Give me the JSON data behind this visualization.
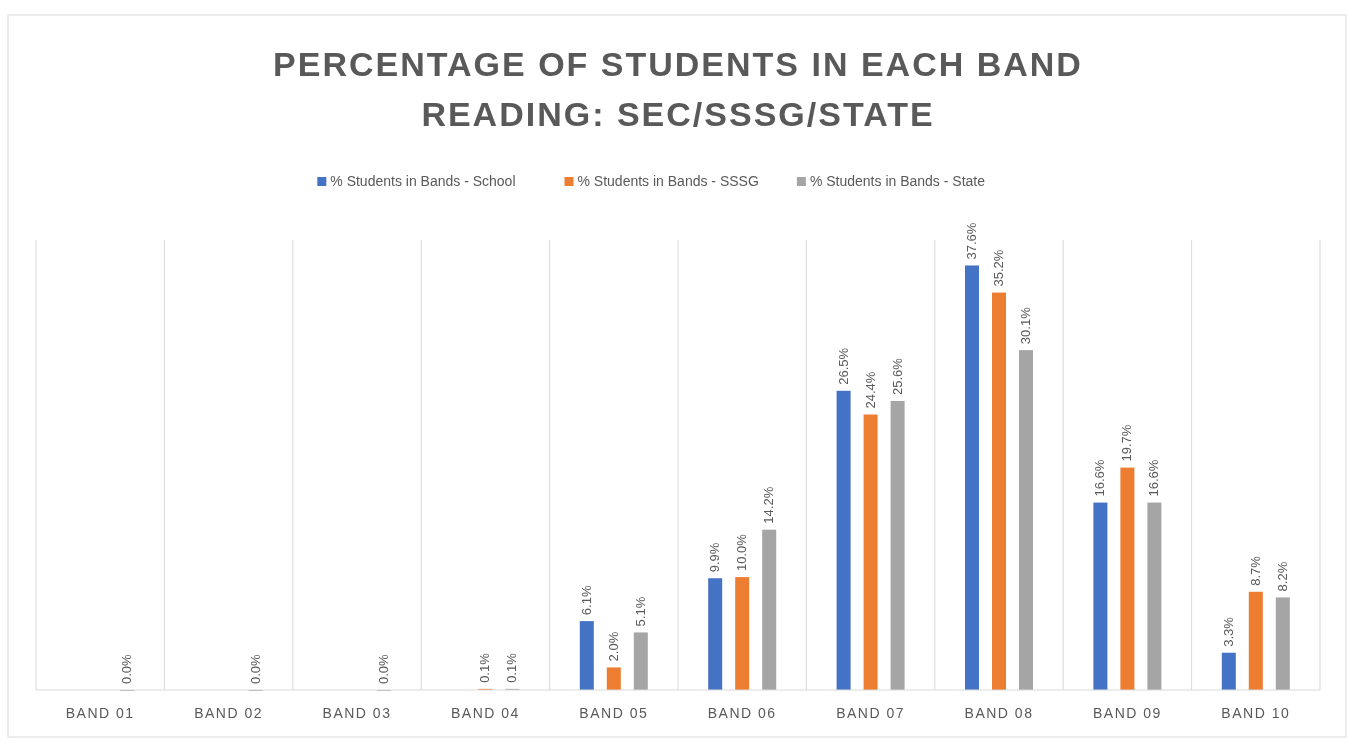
{
  "chart_data": {
    "type": "bar",
    "title": "PERCENTAGE OF STUDENTS IN EACH BAND\nREADING: SEC/SSSG/STATE",
    "categories": [
      "BAND 01",
      "BAND 02",
      "BAND 03",
      "BAND 04",
      "BAND 05",
      "BAND 06",
      "BAND 07",
      "BAND 08",
      "BAND 09",
      "BAND 10"
    ],
    "series": [
      {
        "name": "% Students in Bands - School",
        "color": "#4472c4",
        "values": [
          null,
          null,
          null,
          null,
          6.1,
          9.9,
          26.5,
          37.6,
          16.6,
          3.3
        ],
        "value_labels": [
          null,
          null,
          null,
          null,
          "6.1%",
          "9.9%",
          "26.5%",
          "37.6%",
          "16.6%",
          "3.3%"
        ]
      },
      {
        "name": "% Students in Bands - SSSG",
        "color": "#ed7d31",
        "values": [
          null,
          null,
          null,
          0.1,
          2.0,
          10.0,
          24.4,
          35.2,
          19.7,
          8.7
        ],
        "value_labels": [
          null,
          null,
          null,
          "0.1%",
          "2.0%",
          "10.0%",
          "24.4%",
          "35.2%",
          "19.7%",
          "8.7%"
        ]
      },
      {
        "name": "% Students in Bands - State",
        "color": "#a5a5a5",
        "values": [
          0.0,
          0.0,
          0.0,
          0.1,
          5.1,
          14.2,
          25.6,
          30.1,
          16.6,
          8.2
        ],
        "value_labels": [
          "0.0%",
          "0.0%",
          "0.0%",
          "0.1%",
          "5.1%",
          "14.2%",
          "25.6%",
          "30.1%",
          "16.6%",
          "8.2%"
        ]
      }
    ],
    "grid": "x",
    "legend": "top"
  }
}
